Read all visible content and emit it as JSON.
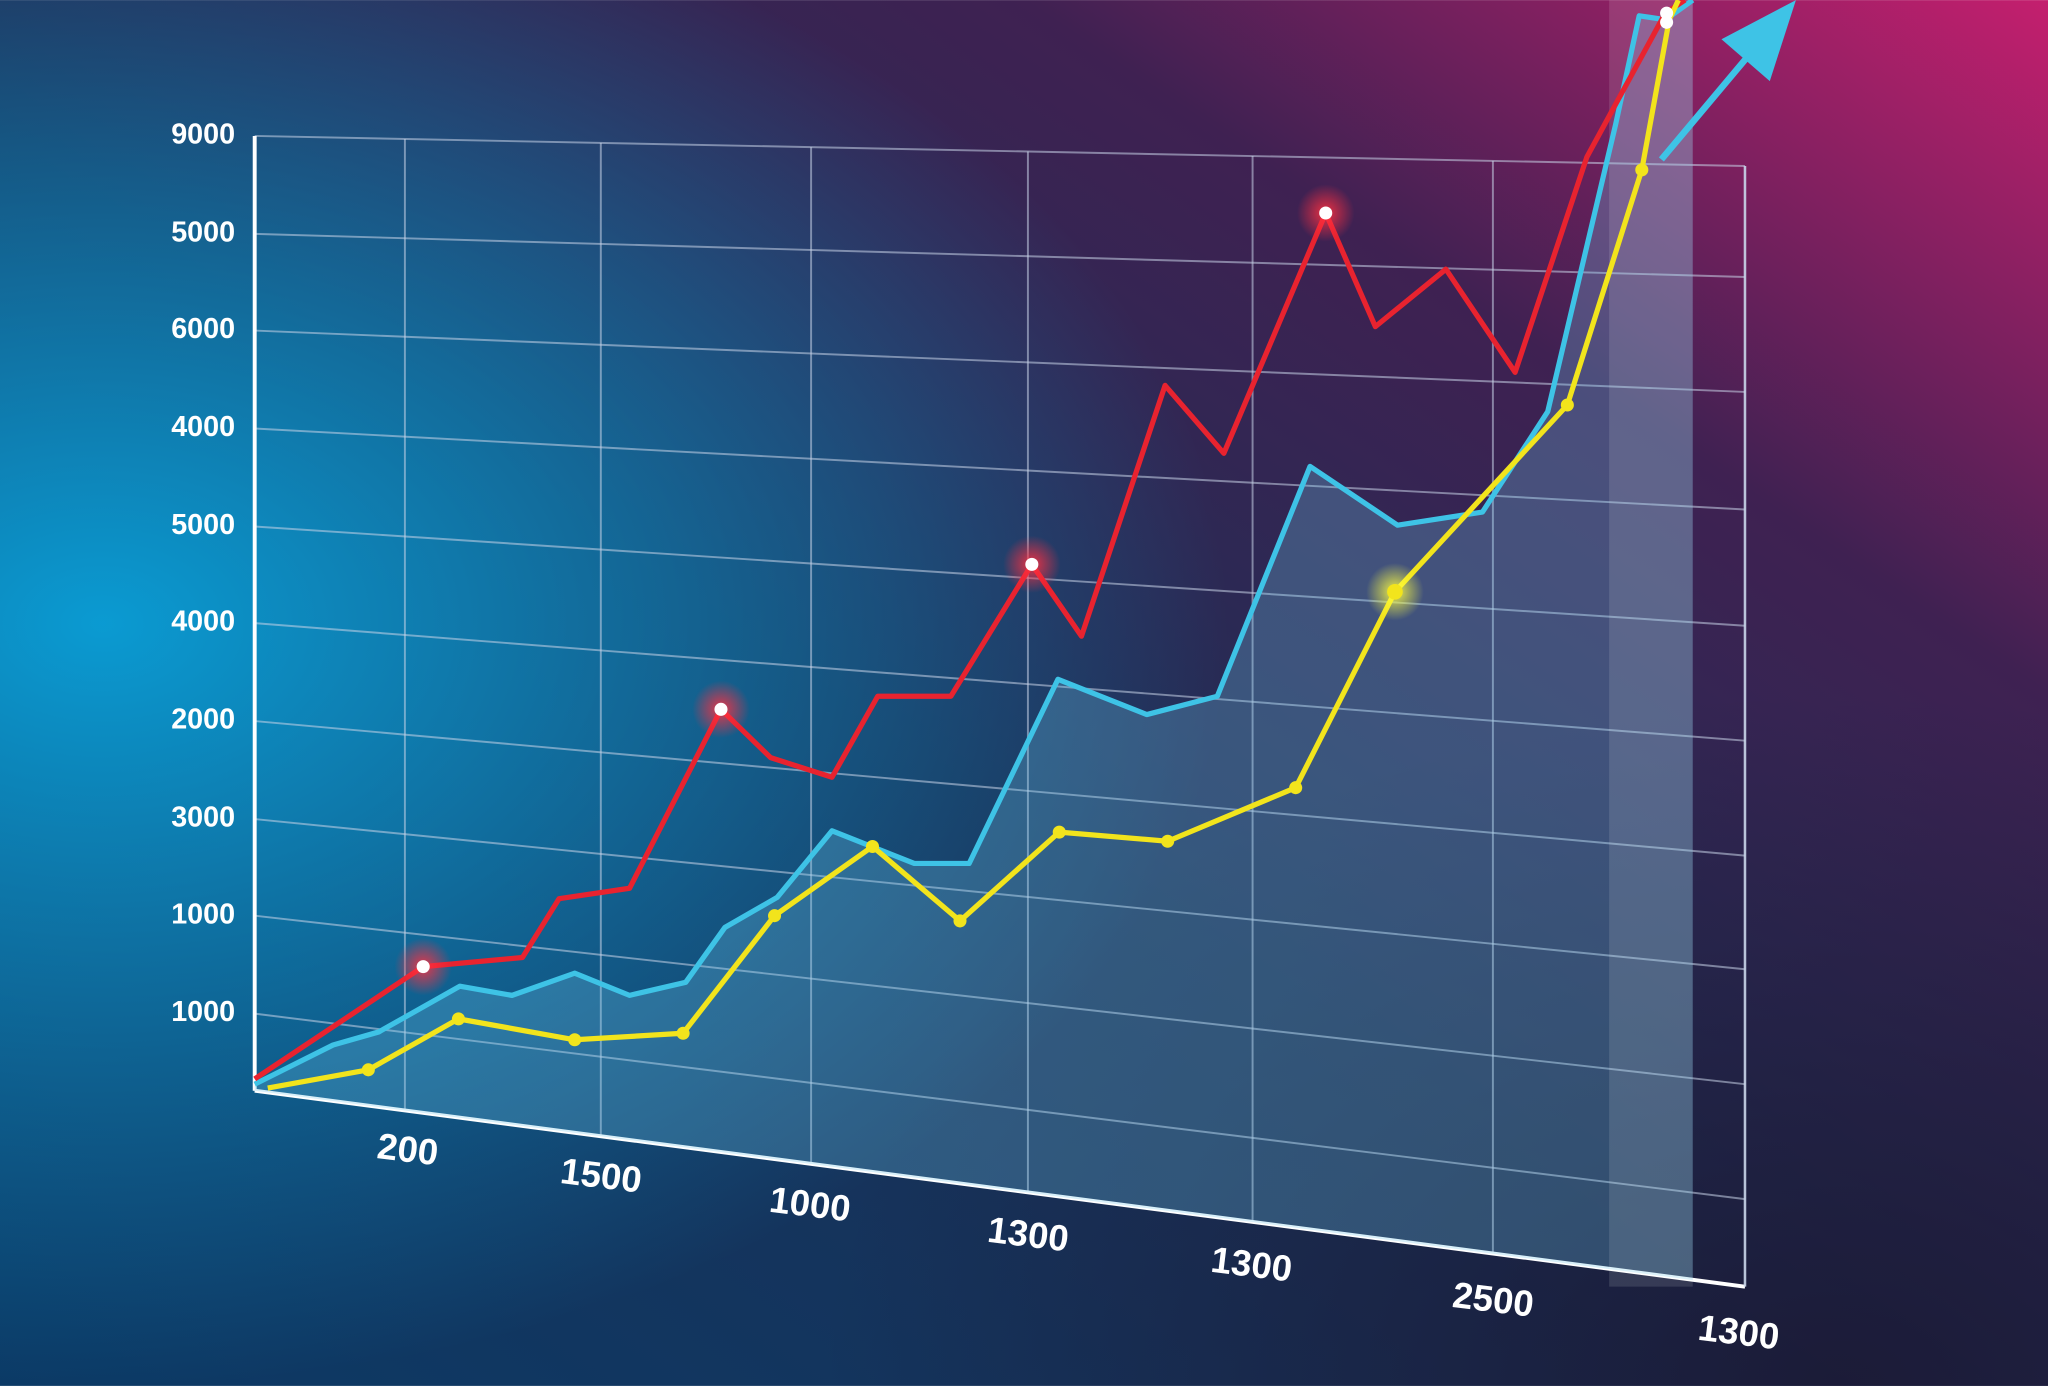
{
  "chart_data": {
    "type": "line",
    "y_labels": [
      "9000",
      "5000",
      "6000",
      "4000",
      "5000",
      "4000",
      "2000",
      "3000",
      "1000",
      "1000"
    ],
    "x_labels": [
      "200",
      "1500",
      "1000",
      "1300",
      "1300",
      "2500",
      "1300"
    ]
  }
}
